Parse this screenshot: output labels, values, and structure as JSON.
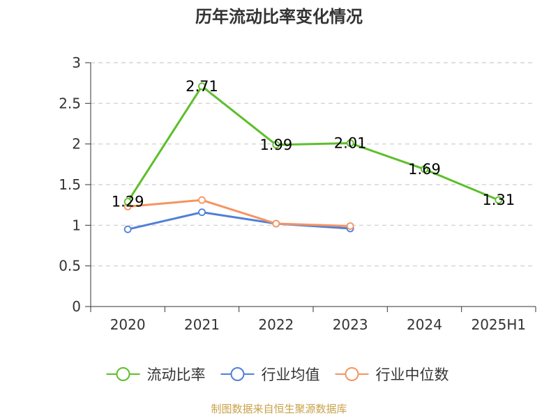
{
  "chart_data": {
    "type": "line",
    "title": "历年流动比率变化情况",
    "categories": [
      "2020",
      "2021",
      "2022",
      "2023",
      "2024",
      "2025H1"
    ],
    "y_ticks": [
      "0",
      "0.5",
      "1",
      "1.5",
      "2",
      "2.5",
      "3"
    ],
    "ylim": [
      0,
      3
    ],
    "grid": true,
    "legend_position": "bottom",
    "series": [
      {
        "name": "流动比率",
        "color": "#5cbf2a",
        "values": [
          1.29,
          2.71,
          1.99,
          2.01,
          1.69,
          1.31
        ],
        "labels": [
          "1.29",
          "2.71",
          "1.99",
          "2.01",
          "1.69",
          "1.31"
        ]
      },
      {
        "name": "行业均值",
        "color": "#4f7fd8",
        "values": [
          0.95,
          1.16,
          1.02,
          0.96,
          null,
          null
        ]
      },
      {
        "name": "行业中位数",
        "color": "#f59461",
        "values": [
          1.23,
          1.31,
          1.02,
          0.99,
          null,
          null
        ]
      }
    ]
  },
  "source_text": "制图数据来自恒生聚源数据库"
}
